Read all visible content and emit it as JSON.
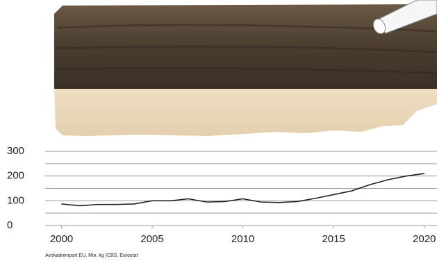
{
  "chart_data": {
    "type": "line",
    "caption": "Avokadoimport EU, Mio. kg (CBS, Eurostat",
    "x": [
      2000,
      2001,
      2002,
      2003,
      2004,
      2005,
      2006,
      2007,
      2008,
      2009,
      2010,
      2011,
      2012,
      2013,
      2014,
      2015,
      2016,
      2017,
      2018,
      2019,
      2020
    ],
    "series": [
      {
        "color": "#222222",
        "values": [
          87,
          80,
          85,
          85,
          87,
          100,
          100,
          108,
          95,
          97,
          108,
          95,
          93,
          97,
          110,
          125,
          140,
          165,
          185,
          200,
          210
        ]
      }
    ],
    "xlim": [
      1999.1,
      2020.7
    ],
    "xticks": [
      2000,
      2005,
      2010,
      2015,
      2020
    ],
    "ylim": [
      0,
      300
    ],
    "yticks": [
      0,
      100,
      200,
      300
    ],
    "minor_yticks": [
      50,
      150,
      250
    ],
    "grid": true
  }
}
